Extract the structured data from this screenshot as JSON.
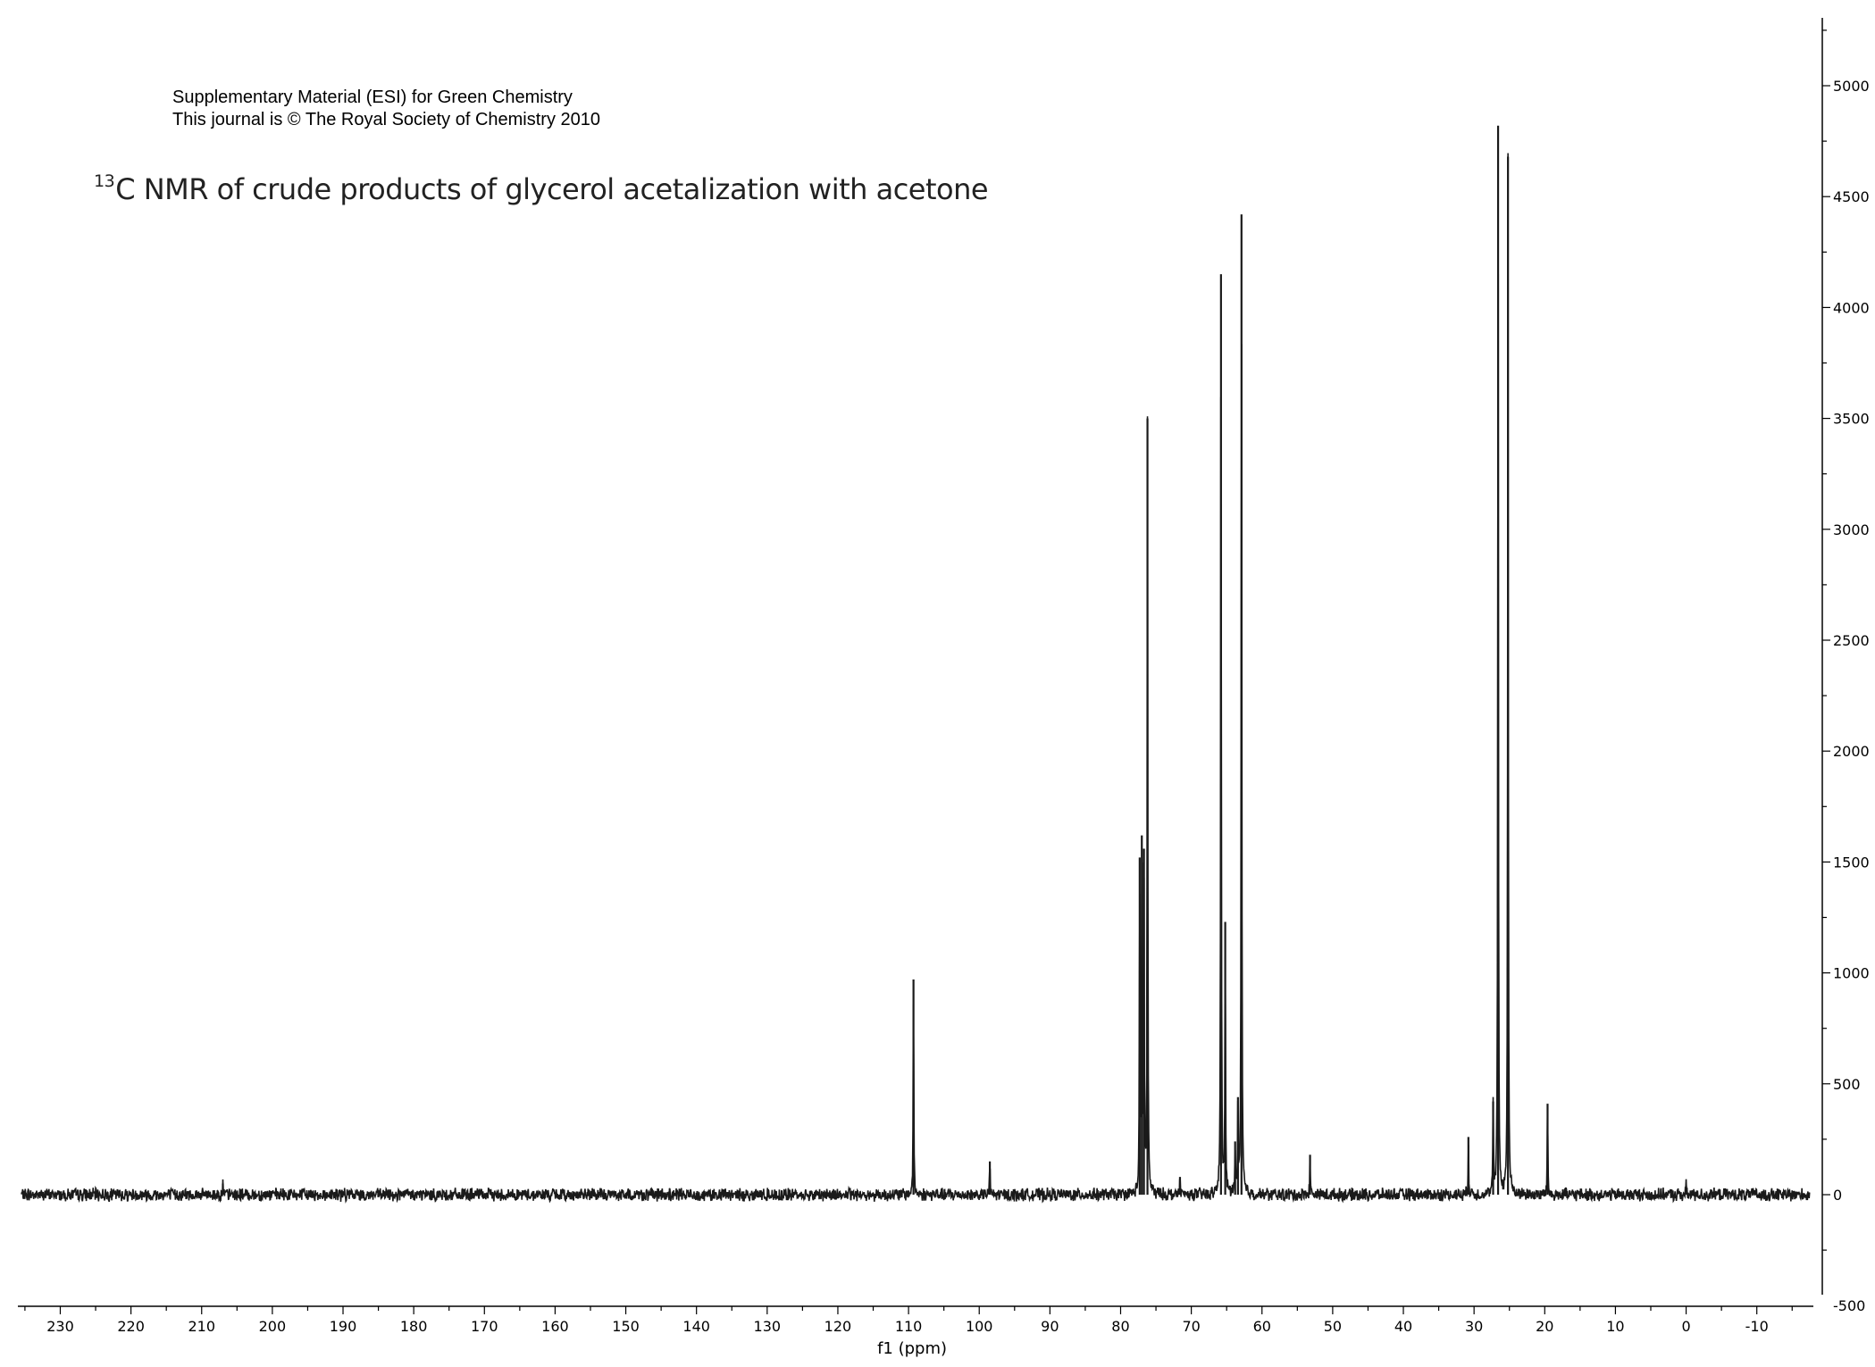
{
  "header": {
    "line1": "Supplementary Material (ESI) for Green Chemistry",
    "line2": "This journal is © The Royal Society of Chemistry 2010"
  },
  "chart_data": {
    "type": "line",
    "title_sup": "13",
    "title": "C NMR of crude products of glycerol acetalization with acetone",
    "xlabel": "f1 (ppm)",
    "ylabel": "",
    "x_reversed": true,
    "xlim": [
      236,
      -18
    ],
    "ylim": [
      -500,
      5000
    ],
    "x_ticks": [
      230,
      220,
      210,
      200,
      190,
      180,
      170,
      160,
      150,
      140,
      130,
      120,
      110,
      100,
      90,
      80,
      70,
      60,
      50,
      40,
      30,
      20,
      10,
      0,
      -10
    ],
    "y_ticks": [
      -500,
      0,
      500,
      1000,
      1500,
      2000,
      2500,
      3000,
      3500,
      4000,
      4500,
      5000
    ],
    "grid": false,
    "line_color": "#1a1a1a",
    "baseline_noise": 25,
    "peaks": [
      {
        "ppm": 207.0,
        "intensity": 50
      },
      {
        "ppm": 109.3,
        "intensity": 970
      },
      {
        "ppm": 98.5,
        "intensity": 150
      },
      {
        "ppm": 77.3,
        "intensity": 1520
      },
      {
        "ppm": 77.0,
        "intensity": 1620
      },
      {
        "ppm": 76.7,
        "intensity": 1560
      },
      {
        "ppm": 76.2,
        "intensity": 3500
      },
      {
        "ppm": 71.6,
        "intensity": 80
      },
      {
        "ppm": 65.8,
        "intensity": 4150
      },
      {
        "ppm": 65.2,
        "intensity": 1230
      },
      {
        "ppm": 63.8,
        "intensity": 240
      },
      {
        "ppm": 63.4,
        "intensity": 440
      },
      {
        "ppm": 62.9,
        "intensity": 4420
      },
      {
        "ppm": 53.2,
        "intensity": 180
      },
      {
        "ppm": 30.8,
        "intensity": 260
      },
      {
        "ppm": 27.3,
        "intensity": 420
      },
      {
        "ppm": 26.6,
        "intensity": 4820
      },
      {
        "ppm": 25.2,
        "intensity": 4680
      },
      {
        "ppm": 19.6,
        "intensity": 410
      },
      {
        "ppm": 0.0,
        "intensity": 40
      }
    ]
  }
}
